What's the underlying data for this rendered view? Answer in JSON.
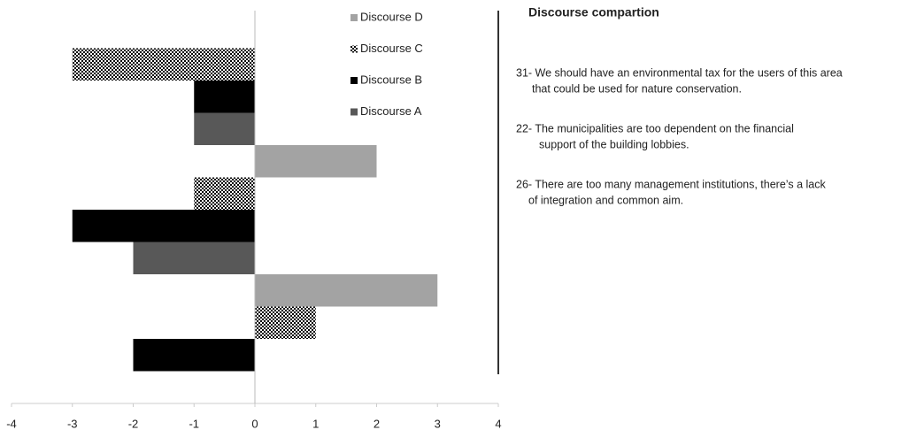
{
  "chart_data": {
    "type": "barh",
    "categories": [
      null,
      null,
      null
    ],
    "series": [
      {
        "name": "Discourse D",
        "color": "#a3a3a3",
        "values": [
          0,
          2,
          3
        ]
      },
      {
        "name": "Discourse C",
        "color": "#000000",
        "pattern": "checker",
        "values": [
          -3,
          -1,
          1
        ]
      },
      {
        "name": "Discourse B",
        "color": "#000000",
        "values": [
          -1,
          -3,
          -2
        ]
      },
      {
        "name": "Discourse A",
        "color": "#585858",
        "values": [
          -1,
          -2,
          0
        ]
      }
    ],
    "xlim": [
      -4,
      4
    ],
    "xticks": [
      -4,
      -3,
      -2,
      -1,
      0,
      1,
      2,
      3,
      4
    ],
    "legend": "upper-center"
  },
  "panel": {
    "title": "Discourse compartion",
    "statements": [
      [
        "31- We should have an environmental tax for the users of this area",
        "that could be used for nature conservation."
      ],
      [
        "22- The municipalities are too dependent on the financial",
        "support of the building lobbies."
      ],
      [
        "26- There are too many management institutions, there’s a lack",
        "of integration and common aim."
      ]
    ]
  }
}
